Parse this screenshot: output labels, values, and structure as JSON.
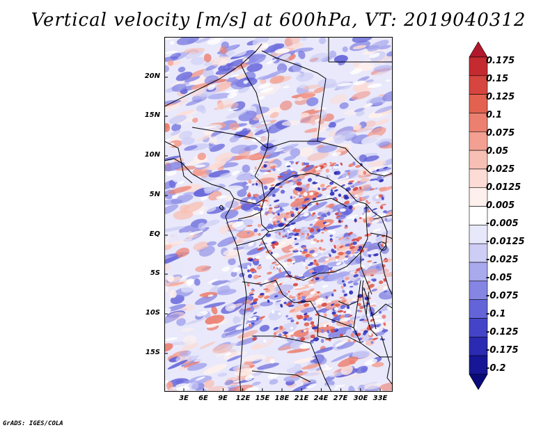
{
  "title": "Vertical velocity [m/s] at 600hPa, VT: 2019040312",
  "credit": "GrADS: IGES/COLA",
  "latitude_labels": [
    "20N",
    "15N",
    "10N",
    "5N",
    "EQ",
    "5S",
    "10S",
    "15S"
  ],
  "longitude_labels": [
    "3E",
    "6E",
    "9E",
    "12E",
    "15E",
    "18E",
    "21E",
    "24E",
    "27E",
    "30E",
    "33E"
  ],
  "colorbar": {
    "labels": [
      "0.175",
      "0.15",
      "0.125",
      "0.1",
      "0.075",
      "0.05",
      "0.025",
      "0.0125",
      "0.005",
      "-0.005",
      "-0.0125",
      "-0.025",
      "-0.05",
      "-0.075",
      "-0.1",
      "-0.125",
      "-0.175",
      "-0.2"
    ],
    "colors": [
      "#b2182b",
      "#c42a30",
      "#d6453f",
      "#e2624f",
      "#ec8070",
      "#f3a092",
      "#f8c0b5",
      "#fcdcd5",
      "#fef0ec",
      "#ffffff",
      "#e8e8fb",
      "#cdcdf5",
      "#a9a9ee",
      "#8585e4",
      "#6464d9",
      "#4444c8",
      "#2a2ab2",
      "#161696",
      "#0a0a7a"
    ]
  },
  "map": {
    "lon_range": [
      0,
      35
    ],
    "lat_range": [
      -20,
      24
    ],
    "field": "vertical velocity",
    "level_hpa": 600
  }
}
